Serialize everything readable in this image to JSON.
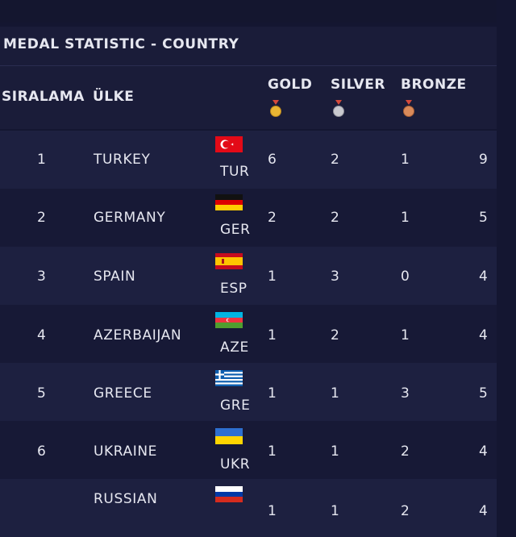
{
  "title": "MEDAL STATISTIC - COUNTRY",
  "headers": {
    "rank": "SIRALAMA",
    "country": "ÜLKE",
    "gold": "GOLD",
    "silver": "SILVER",
    "bronze": "BRONZE"
  },
  "colors": {
    "gold": "#e9b533",
    "silver": "#c9c9cf",
    "bronze": "#d98a5a"
  },
  "rows": [
    {
      "rank": "1",
      "country": "TURKEY",
      "code": "TUR",
      "gold": "6",
      "silver": "2",
      "bronze": "1",
      "total": "9",
      "flag": "turkey-flag-icon"
    },
    {
      "rank": "2",
      "country": "GERMANY",
      "code": "GER",
      "gold": "2",
      "silver": "2",
      "bronze": "1",
      "total": "5",
      "flag": "germany-flag-icon"
    },
    {
      "rank": "3",
      "country": "SPAIN",
      "code": "ESP",
      "gold": "1",
      "silver": "3",
      "bronze": "0",
      "total": "4",
      "flag": "spain-flag-icon"
    },
    {
      "rank": "4",
      "country": "AZERBAIJAN",
      "code": "AZE",
      "gold": "1",
      "silver": "2",
      "bronze": "1",
      "total": "4",
      "flag": "azerbaijan-flag-icon"
    },
    {
      "rank": "5",
      "country": "GREECE",
      "code": "GRE",
      "gold": "1",
      "silver": "1",
      "bronze": "3",
      "total": "5",
      "flag": "greece-flag-icon"
    },
    {
      "rank": "6",
      "country": "UKRAINE",
      "code": "UKR",
      "gold": "1",
      "silver": "1",
      "bronze": "2",
      "total": "4",
      "flag": "ukraine-flag-icon"
    },
    {
      "rank": "",
      "country": "RUSSIAN",
      "code": "",
      "gold": "1",
      "silver": "1",
      "bronze": "2",
      "total": "4",
      "flag": "russia-flag-icon"
    }
  ]
}
